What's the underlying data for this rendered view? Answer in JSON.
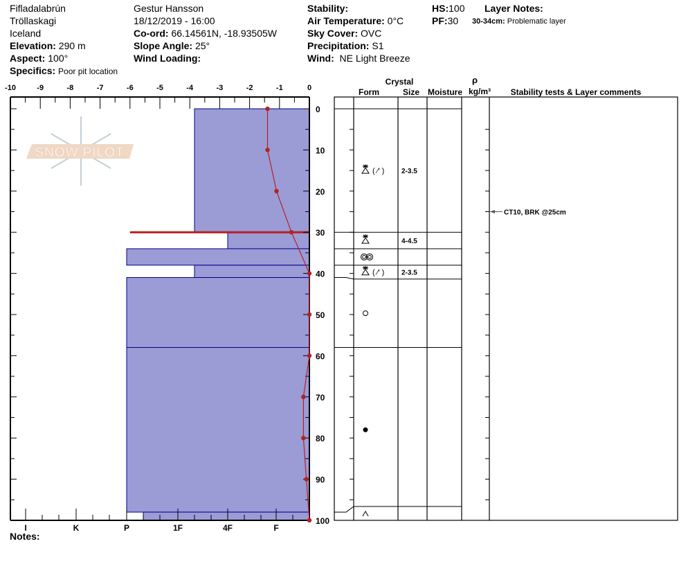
{
  "header": {
    "location": "Fifladalabrún",
    "region": "Tröllaskagi",
    "country": "Iceland",
    "elevation": {
      "label": "Elevation:",
      "value": "290 m"
    },
    "aspect": {
      "label": "Aspect:",
      "value": "100°"
    },
    "specifics": {
      "label": "Specifics:",
      "value": "Poor pit location"
    },
    "observer": "Gestur Hansson",
    "datetime": "18/12/2019 - 16:00",
    "coord": {
      "label": "Co-ord:",
      "value": "66.14561N, -18.93505W"
    },
    "slope_angle": {
      "label": "Slope Angle:",
      "value": "25°"
    },
    "wind_loading": {
      "label": "Wind Loading:",
      "value": ""
    },
    "stability": {
      "label": "Stability:",
      "value": ""
    },
    "air_temperature": {
      "label": "Air Temperature:",
      "value": "0°C"
    },
    "sky_cover": {
      "label": "Sky Cover:",
      "value": "OVC"
    },
    "precipitation": {
      "label": "Precipitation:",
      "value": "S1"
    },
    "wind": {
      "label": "Wind:",
      "value": "NE Light Breeze"
    },
    "hs": {
      "label": "HS:",
      "value": "100"
    },
    "pf": {
      "label": "PF:",
      "value": "30"
    },
    "layer_notes": {
      "label": "Layer Notes:",
      "range": "30-34cm:",
      "text": "Problematic layer"
    }
  },
  "notes_label": "Notes:",
  "logo_text": "SNOW PILOT",
  "colors": {
    "layer_fill": "#9b9bd6",
    "layer_stroke": "#00008b",
    "temp_line": "#b22222",
    "problem_layer": "#b22222",
    "logo_band": "#f0d8c4",
    "logo_flake": "#c4ced6"
  },
  "table_headers": {
    "crystal": "Crystal",
    "form": "Form",
    "size": "Size",
    "moisture": "Moisture",
    "rho": "ρ",
    "density_unit": "kg/m³",
    "stability": "Stability tests & Layer comments"
  },
  "chart_data": {
    "type": "snow-profile",
    "temperature_axis": {
      "ticks": [
        "-10",
        "-9",
        "-8",
        "-7",
        "-6",
        "-5",
        "-4",
        "-3",
        "-2",
        "-1",
        "0"
      ],
      "range": [
        -10,
        0
      ]
    },
    "depth_axis": {
      "ticks": [
        "0",
        "10",
        "20",
        "30",
        "40",
        "50",
        "60",
        "70",
        "80",
        "90",
        "100"
      ],
      "range": [
        0,
        100
      ]
    },
    "hardness_axis": {
      "ticks": [
        "I",
        "K",
        "P",
        "1F",
        "4F",
        "F"
      ]
    },
    "temperature_profile": [
      {
        "depth": 0,
        "temp": -1.4
      },
      {
        "depth": 10,
        "temp": -1.4
      },
      {
        "depth": 20,
        "temp": -1.1
      },
      {
        "depth": 30,
        "temp": -0.6
      },
      {
        "depth": 40,
        "temp": 0
      },
      {
        "depth": 50,
        "temp": 0
      },
      {
        "depth": 60,
        "temp": 0
      },
      {
        "depth": 70,
        "temp": -0.2
      },
      {
        "depth": 80,
        "temp": -0.2
      },
      {
        "depth": 90,
        "temp": -0.1
      },
      {
        "depth": 100,
        "temp": 0
      }
    ],
    "problem_layer_depth": 30,
    "layers": [
      {
        "top": 0,
        "bottom": 30,
        "hardness": "1F-",
        "form": "faceted-depth-hoar",
        "secondary": true,
        "size": "2-3.5"
      },
      {
        "top": 30,
        "bottom": 34,
        "hardness": "4F",
        "form": "faceted-depth-hoar",
        "secondary": false,
        "size": "4-4.5"
      },
      {
        "top": 34,
        "bottom": 38,
        "hardness": "P",
        "form": "melt-forms",
        "secondary": false,
        "size": ""
      },
      {
        "top": 38,
        "bottom": 41,
        "hardness": "1F-",
        "form": "faceted-depth-hoar",
        "secondary": true,
        "size": "2-3.5"
      },
      {
        "top": 41,
        "bottom": 58,
        "hardness": "P",
        "form": "rounded",
        "secondary": false,
        "size": ""
      },
      {
        "top": 58,
        "bottom": 98,
        "hardness": "P",
        "form": "ice",
        "secondary": false,
        "size": ""
      },
      {
        "top": 98,
        "bottom": 100,
        "hardness": "P-",
        "form": "depth-hoar",
        "secondary": false,
        "size": ""
      }
    ],
    "stability_tests": [
      {
        "depth": 25,
        "text": "CT10, BRK @25cm"
      }
    ]
  }
}
